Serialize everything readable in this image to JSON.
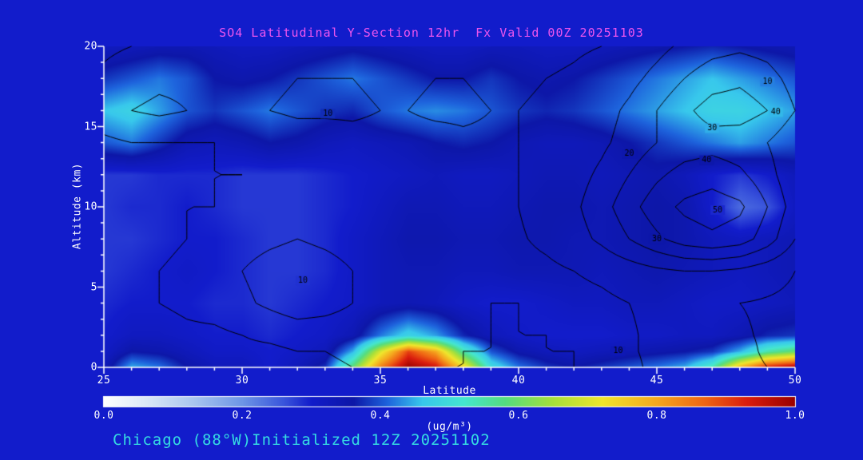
{
  "title": {
    "text": "SO4 Latitudinal Y-Section 12hr  Fx Valid 00Z 20251103",
    "color": "#ee55ee"
  },
  "footer": {
    "text": "Chicago (88°W)Initialized 12Z 20251102",
    "color": "#35dce2"
  },
  "page": {
    "background": "#121ccb"
  },
  "axes": {
    "x": {
      "label": "Latitude",
      "min": 25,
      "max": 50,
      "major_ticks": [
        25,
        30,
        35,
        40,
        45,
        50
      ],
      "minor_step": 1
    },
    "y": {
      "label": "Altitude (km)",
      "min": 0,
      "max": 20,
      "major_ticks": [
        0,
        5,
        10,
        15,
        20
      ],
      "minor_step": 1
    }
  },
  "colorbar": {
    "unit": "(ug/m³)",
    "ticks": [
      {
        "label": "0.0",
        "value": 0.0
      },
      {
        "label": "0.2",
        "value": 0.2
      },
      {
        "label": "0.4",
        "value": 0.4
      },
      {
        "label": "0.6",
        "value": 0.6
      },
      {
        "label": "0.8",
        "value": 0.8
      },
      {
        "label": "1.0",
        "value": 1.0
      }
    ]
  },
  "chart_data": {
    "type": "heatmap",
    "title": "SO4 Latitudinal Y-Section 12hr  Fx Valid 00Z 20251103",
    "xlabel": "Latitude",
    "ylabel": "Altitude (km)",
    "units": "(ug/m³)",
    "x_range": [
      25,
      50
    ],
    "y_range": [
      0,
      20
    ],
    "value_range": [
      0,
      1
    ],
    "lat_min": 25,
    "lat_step": 1,
    "alt_levels": [
      0,
      1,
      2,
      4,
      6,
      8,
      10,
      12,
      14,
      16,
      18,
      20
    ],
    "so4_grid": [
      [
        0.33,
        0.45,
        0.42,
        0.36,
        0.33,
        0.33,
        0.3,
        0.33,
        0.38,
        0.6,
        0.85,
        1.0,
        0.95,
        0.75,
        0.5,
        0.42,
        0.38,
        0.36,
        0.38,
        0.4,
        0.42,
        0.45,
        0.55,
        0.8,
        0.95,
        1.0
      ],
      [
        0.31,
        0.36,
        0.35,
        0.33,
        0.31,
        0.31,
        0.3,
        0.31,
        0.33,
        0.45,
        0.7,
        0.9,
        0.8,
        0.55,
        0.4,
        0.35,
        0.33,
        0.32,
        0.33,
        0.34,
        0.35,
        0.36,
        0.38,
        0.45,
        0.55,
        0.6
      ],
      [
        0.3,
        0.32,
        0.32,
        0.31,
        0.3,
        0.3,
        0.29,
        0.3,
        0.31,
        0.34,
        0.42,
        0.48,
        0.44,
        0.37,
        0.33,
        0.31,
        0.3,
        0.3,
        0.3,
        0.31,
        0.31,
        0.32,
        0.32,
        0.34,
        0.37,
        0.38
      ],
      [
        0.29,
        0.3,
        0.3,
        0.3,
        0.29,
        0.29,
        0.28,
        0.29,
        0.3,
        0.31,
        0.33,
        0.34,
        0.33,
        0.31,
        0.3,
        0.3,
        0.31,
        0.32,
        0.32,
        0.33,
        0.33,
        0.32,
        0.31,
        0.31,
        0.32,
        0.33
      ],
      [
        0.28,
        0.29,
        0.3,
        0.31,
        0.3,
        0.29,
        0.28,
        0.28,
        0.29,
        0.31,
        0.33,
        0.34,
        0.34,
        0.33,
        0.33,
        0.34,
        0.34,
        0.34,
        0.33,
        0.34,
        0.35,
        0.34,
        0.33,
        0.32,
        0.33,
        0.34
      ],
      [
        0.28,
        0.28,
        0.29,
        0.3,
        0.3,
        0.29,
        0.28,
        0.28,
        0.29,
        0.31,
        0.33,
        0.35,
        0.35,
        0.34,
        0.34,
        0.35,
        0.35,
        0.34,
        0.34,
        0.35,
        0.36,
        0.35,
        0.33,
        0.32,
        0.33,
        0.34
      ],
      [
        0.28,
        0.29,
        0.29,
        0.3,
        0.29,
        0.28,
        0.28,
        0.28,
        0.29,
        0.3,
        0.32,
        0.34,
        0.34,
        0.33,
        0.33,
        0.34,
        0.35,
        0.35,
        0.34,
        0.35,
        0.36,
        0.35,
        0.3,
        0.24,
        0.26,
        0.32
      ],
      [
        0.28,
        0.28,
        0.29,
        0.29,
        0.29,
        0.28,
        0.28,
        0.28,
        0.29,
        0.3,
        0.31,
        0.32,
        0.33,
        0.32,
        0.32,
        0.33,
        0.34,
        0.34,
        0.33,
        0.34,
        0.35,
        0.33,
        0.3,
        0.28,
        0.3,
        0.33
      ],
      [
        0.4,
        0.42,
        0.38,
        0.34,
        0.33,
        0.34,
        0.36,
        0.35,
        0.33,
        0.32,
        0.33,
        0.34,
        0.36,
        0.37,
        0.36,
        0.34,
        0.33,
        0.33,
        0.34,
        0.36,
        0.38,
        0.4,
        0.42,
        0.44,
        0.42,
        0.4
      ],
      [
        0.46,
        0.48,
        0.44,
        0.4,
        0.38,
        0.4,
        0.42,
        0.4,
        0.38,
        0.37,
        0.4,
        0.42,
        0.43,
        0.42,
        0.4,
        0.38,
        0.37,
        0.38,
        0.4,
        0.42,
        0.44,
        0.46,
        0.48,
        0.48,
        0.46,
        0.44
      ],
      [
        0.38,
        0.4,
        0.42,
        0.4,
        0.36,
        0.35,
        0.36,
        0.38,
        0.4,
        0.42,
        0.4,
        0.38,
        0.36,
        0.36,
        0.38,
        0.36,
        0.35,
        0.36,
        0.38,
        0.4,
        0.42,
        0.44,
        0.46,
        0.44,
        0.42,
        0.4
      ],
      [
        0.32,
        0.33,
        0.34,
        0.34,
        0.33,
        0.32,
        0.32,
        0.33,
        0.34,
        0.35,
        0.34,
        0.33,
        0.32,
        0.32,
        0.33,
        0.33,
        0.32,
        0.32,
        0.33,
        0.34,
        0.35,
        0.36,
        0.37,
        0.36,
        0.35,
        0.34
      ]
    ],
    "colormap_stops": [
      [
        0.0,
        "#ffffff"
      ],
      [
        0.06,
        "#dce9f7"
      ],
      [
        0.13,
        "#a9c6ef"
      ],
      [
        0.2,
        "#6e96e6"
      ],
      [
        0.26,
        "#3a55dc"
      ],
      [
        0.3,
        "#121ccb"
      ],
      [
        0.36,
        "#0d17a8"
      ],
      [
        0.41,
        "#1e64dd"
      ],
      [
        0.46,
        "#38c8ec"
      ],
      [
        0.52,
        "#45e6d0"
      ],
      [
        0.58,
        "#55dd80"
      ],
      [
        0.65,
        "#a8e03a"
      ],
      [
        0.72,
        "#f0e62c"
      ],
      [
        0.8,
        "#f5a81e"
      ],
      [
        0.87,
        "#ef6414"
      ],
      [
        0.93,
        "#da1d0e"
      ],
      [
        1.0,
        "#990000"
      ]
    ],
    "overlay": {
      "levels": [
        5,
        10,
        20,
        30,
        40,
        50
      ],
      "grid": [
        [
          2,
          2,
          2,
          2,
          2,
          3,
          3,
          4,
          4,
          5,
          5,
          5,
          5,
          5,
          4,
          4,
          4,
          5,
          6,
          8,
          12,
          15,
          15,
          12,
          10,
          8
        ],
        [
          2,
          2,
          3,
          3,
          3,
          4,
          4,
          5,
          5,
          6,
          6,
          6,
          6,
          5,
          5,
          5,
          5,
          5,
          7,
          9,
          12,
          14,
          14,
          12,
          9,
          7
        ],
        [
          2,
          3,
          3,
          4,
          4,
          5,
          6,
          7,
          7,
          7,
          6,
          6,
          6,
          6,
          5,
          5,
          5,
          6,
          7,
          9,
          12,
          14,
          13,
          11,
          9,
          7
        ],
        [
          3,
          4,
          5,
          6,
          7,
          9,
          11,
          13,
          12,
          10,
          8,
          7,
          6,
          6,
          5,
          5,
          6,
          7,
          8,
          10,
          12,
          13,
          12,
          10,
          9,
          8
        ],
        [
          3,
          4,
          5,
          6,
          8,
          10,
          12,
          13,
          12,
          10,
          8,
          7,
          7,
          7,
          6,
          7,
          8,
          10,
          12,
          15,
          18,
          20,
          20,
          18,
          14,
          10
        ],
        [
          3,
          4,
          4,
          5,
          6,
          8,
          9,
          10,
          9,
          8,
          7,
          7,
          7,
          8,
          8,
          9,
          12,
          16,
          22,
          30,
          38,
          45,
          48,
          45,
          35,
          20
        ],
        [
          3,
          4,
          4,
          5,
          5,
          6,
          7,
          8,
          8,
          7,
          7,
          7,
          8,
          8,
          9,
          10,
          14,
          18,
          26,
          36,
          46,
          52,
          55,
          52,
          40,
          25
        ],
        [
          3,
          4,
          4,
          4,
          5,
          5,
          6,
          7,
          7,
          7,
          7,
          7,
          8,
          8,
          9,
          10,
          13,
          16,
          22,
          30,
          38,
          44,
          46,
          42,
          34,
          22
        ],
        [
          4,
          5,
          5,
          5,
          5,
          6,
          6,
          7,
          7,
          8,
          8,
          8,
          8,
          9,
          9,
          10,
          12,
          14,
          18,
          24,
          30,
          34,
          36,
          34,
          30,
          22
        ],
        [
          8,
          10,
          11,
          10,
          9,
          9,
          10,
          11,
          11,
          11,
          10,
          10,
          11,
          11,
          10,
          10,
          11,
          13,
          16,
          22,
          30,
          38,
          44,
          45,
          40,
          30
        ],
        [
          6,
          8,
          9,
          9,
          8,
          8,
          9,
          10,
          10,
          10,
          9,
          9,
          10,
          10,
          9,
          9,
          10,
          11,
          13,
          17,
          23,
          30,
          36,
          38,
          34,
          26
        ],
        [
          4,
          5,
          6,
          6,
          6,
          6,
          6,
          7,
          7,
          7,
          7,
          7,
          7,
          7,
          7,
          7,
          8,
          9,
          10,
          13,
          17,
          22,
          26,
          28,
          26,
          20
        ]
      ],
      "labels": [
        {
          "text": "10",
          "lat": 33.1,
          "alt": 15.8
        },
        {
          "text": "10",
          "lat": 49.0,
          "alt": 17.8
        },
        {
          "text": "40",
          "lat": 49.3,
          "alt": 15.9
        },
        {
          "text": "30",
          "lat": 47.0,
          "alt": 14.9
        },
        {
          "text": "20",
          "lat": 44.0,
          "alt": 13.3
        },
        {
          "text": "40",
          "lat": 46.8,
          "alt": 12.9
        },
        {
          "text": "50",
          "lat": 47.2,
          "alt": 9.8
        },
        {
          "text": "30",
          "lat": 45.0,
          "alt": 8.0
        },
        {
          "text": "10",
          "lat": 32.2,
          "alt": 5.4
        },
        {
          "text": "10",
          "lat": 43.6,
          "alt": 1.0
        }
      ]
    }
  }
}
